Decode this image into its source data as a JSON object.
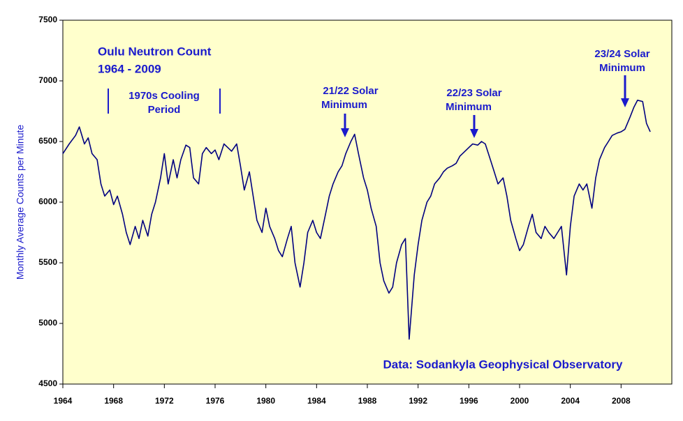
{
  "chart_data": {
    "type": "line",
    "title": [
      "Oulu Neutron Count",
      "1964 - 2009"
    ],
    "y_label": "Monthly Average Counts per Minute",
    "annotations": [
      [
        "1970s Cooling",
        "Period"
      ],
      [
        "21/22 Solar",
        "Minimum"
      ],
      [
        "22/23 Solar",
        "Minimum"
      ],
      [
        "23/24 Solar",
        "Minimum"
      ]
    ],
    "source": "Data:  Sodankyla Geophysical Observatory",
    "color": "#000080",
    "background": "#ffffcc",
    "xlim": [
      1964,
      2012
    ],
    "xticks": [
      1964,
      1968,
      1972,
      1976,
      1980,
      1984,
      1988,
      1992,
      1996,
      2000,
      2004,
      2008
    ],
    "ylim": [
      4500,
      7500
    ],
    "yticks": [
      4500,
      5000,
      5500,
      6000,
      6500,
      7000,
      7500
    ],
    "x": [
      1964.0,
      1964.5,
      1965.0,
      1965.3,
      1965.7,
      1966.0,
      1966.3,
      1966.7,
      1967.0,
      1967.3,
      1967.7,
      1968.0,
      1968.3,
      1968.7,
      1969.0,
      1969.3,
      1969.7,
      1970.0,
      1970.3,
      1970.7,
      1971.0,
      1971.3,
      1971.7,
      1972.0,
      1972.3,
      1972.7,
      1973.0,
      1973.3,
      1973.7,
      1974.0,
      1974.3,
      1974.7,
      1975.0,
      1975.3,
      1975.7,
      1976.0,
      1976.3,
      1976.7,
      1977.0,
      1977.3,
      1977.7,
      1978.0,
      1978.3,
      1978.7,
      1979.0,
      1979.3,
      1979.7,
      1980.0,
      1980.3,
      1980.7,
      1981.0,
      1981.3,
      1981.7,
      1982.0,
      1982.3,
      1982.7,
      1983.0,
      1983.3,
      1983.7,
      1984.0,
      1984.3,
      1984.7,
      1985.0,
      1985.3,
      1985.7,
      1986.0,
      1986.3,
      1986.7,
      1987.0,
      1987.3,
      1987.7,
      1988.0,
      1988.3,
      1988.7,
      1989.0,
      1989.3,
      1989.7,
      1990.0,
      1990.3,
      1990.7,
      1991.0,
      1991.3,
      1991.7,
      1992.0,
      1992.3,
      1992.7,
      1993.0,
      1993.3,
      1993.7,
      1994.0,
      1994.3,
      1994.7,
      1995.0,
      1995.3,
      1995.7,
      1996.0,
      1996.3,
      1996.7,
      1997.0,
      1997.3,
      1997.7,
      1998.0,
      1998.3,
      1998.7,
      1999.0,
      1999.3,
      1999.7,
      2000.0,
      2000.3,
      2000.7,
      2001.0,
      2001.3,
      2001.7,
      2002.0,
      2002.3,
      2002.7,
      2003.0,
      2003.3,
      2003.7,
      2004.0,
      2004.3,
      2004.7,
      2005.0,
      2005.3,
      2005.7,
      2006.0,
      2006.3,
      2006.7,
      2007.0,
      2007.3,
      2007.7,
      2008.0,
      2008.3,
      2008.7,
      2009.0,
      2009.3,
      2009.7,
      2010.0,
      2010.3
    ],
    "values": [
      6400,
      6480,
      6550,
      6620,
      6480,
      6530,
      6400,
      6350,
      6150,
      6050,
      6100,
      5980,
      6050,
      5900,
      5750,
      5650,
      5800,
      5700,
      5850,
      5720,
      5900,
      6000,
      6200,
      6400,
      6150,
      6350,
      6200,
      6350,
      6470,
      6450,
      6200,
      6150,
      6400,
      6450,
      6400,
      6430,
      6350,
      6480,
      6450,
      6420,
      6480,
      6300,
      6100,
      6250,
      6050,
      5850,
      5750,
      5950,
      5800,
      5700,
      5600,
      5550,
      5700,
      5800,
      5500,
      5300,
      5500,
      5750,
      5850,
      5750,
      5700,
      5900,
      6050,
      6150,
      6250,
      6300,
      6400,
      6500,
      6560,
      6400,
      6200,
      6100,
      5950,
      5800,
      5500,
      5350,
      5250,
      5300,
      5500,
      5650,
      5700,
      4870,
      5400,
      5650,
      5850,
      6000,
      6050,
      6150,
      6200,
      6250,
      6280,
      6300,
      6320,
      6380,
      6420,
      6450,
      6480,
      6470,
      6500,
      6480,
      6350,
      6250,
      6150,
      6200,
      6050,
      5850,
      5700,
      5600,
      5650,
      5800,
      5900,
      5750,
      5700,
      5800,
      5750,
      5700,
      5750,
      5800,
      5400,
      5800,
      6050,
      6150,
      6100,
      6150,
      5950,
      6200,
      6350,
      6450,
      6500,
      6550,
      6570,
      6580,
      6600,
      6700,
      6780,
      6840,
      6830,
      6650,
      6580
    ]
  }
}
